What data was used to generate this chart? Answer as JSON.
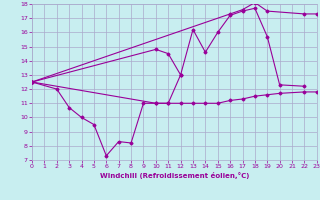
{
  "xlabel": "Windchill (Refroidissement éolien,°C)",
  "background_color": "#c8eef0",
  "grid_color": "#aaaacc",
  "line_color": "#990099",
  "xmin": 0,
  "xmax": 23,
  "ymin": 7,
  "ymax": 18,
  "series1_x": [
    0,
    2,
    3,
    4,
    5,
    6,
    7,
    8,
    9,
    10,
    11,
    12
  ],
  "series1_y": [
    12.5,
    12.0,
    10.7,
    10.0,
    9.5,
    7.3,
    8.3,
    8.2,
    11.0,
    11.0,
    11.0,
    13.0
  ],
  "series2_x": [
    0,
    10,
    11,
    12,
    13,
    14,
    15,
    16,
    17,
    18,
    19,
    20,
    22
  ],
  "series2_y": [
    12.5,
    14.8,
    14.5,
    13.0,
    16.2,
    14.6,
    16.0,
    17.2,
    17.5,
    17.7,
    15.7,
    12.3,
    12.2
  ],
  "series3_x": [
    0,
    16,
    17,
    18,
    19,
    22,
    23
  ],
  "series3_y": [
    12.5,
    17.3,
    17.6,
    18.1,
    17.5,
    17.3,
    17.3
  ],
  "series4_x": [
    0,
    10,
    11,
    12,
    13,
    14,
    15,
    16,
    17,
    18,
    19,
    20,
    22,
    23
  ],
  "series4_y": [
    12.5,
    11.0,
    11.0,
    11.0,
    11.0,
    11.0,
    11.0,
    11.2,
    11.3,
    11.5,
    11.6,
    11.7,
    11.8,
    11.8
  ]
}
